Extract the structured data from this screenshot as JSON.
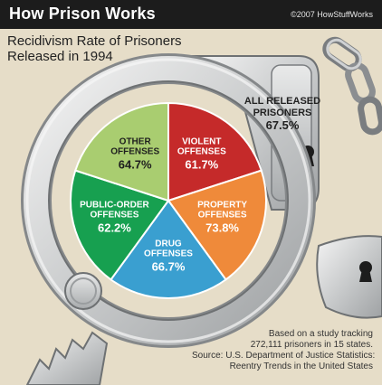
{
  "header": {
    "brand": "How Prison Works",
    "copyright": "©2007 HowStuffWorks"
  },
  "subtitle_lines": [
    "Recidivism Rate of Prisoners",
    "Released in 1994"
  ],
  "total_label": {
    "lines": [
      "ALL RELEASED",
      "PRISONERS"
    ],
    "value": "67.5%"
  },
  "note_lines": [
    "Based on a study tracking",
    "272,111 prisoners in 15 states.",
    "Source: U.S. Department of Justice Statistics:",
    "Reentry Trends in the United States"
  ],
  "chart_data": {
    "type": "pie",
    "title": "Recidivism Rate of Prisoners Released in 1994",
    "slices": [
      {
        "name": "VIOLENT OFFENSES",
        "label_lines": [
          "VIOLENT",
          "OFFENSES"
        ],
        "value": 61.7,
        "value_label": "61.7%",
        "color": "#c52a2a"
      },
      {
        "name": "PROPERTY OFFENSES",
        "label_lines": [
          "PROPERTY",
          "OFFENSES"
        ],
        "value": 73.8,
        "value_label": "73.8%",
        "color": "#ef8a3a"
      },
      {
        "name": "DRUG OFFENSES",
        "label_lines": [
          "DRUG",
          "OFFENSES"
        ],
        "value": 66.7,
        "value_label": "66.7%",
        "color": "#3a9fd0"
      },
      {
        "name": "PUBLIC-ORDER OFFENSES",
        "label_lines": [
          "PUBLIC-ORDER",
          "OFFENSES"
        ],
        "value": 62.2,
        "value_label": "62.2%",
        "color": "#17a050"
      },
      {
        "name": "OTHER OFFENSES",
        "label_lines": [
          "OTHER",
          "OFFENSES"
        ],
        "value": 64.7,
        "value_label": "64.7%",
        "color": "#a9cd70"
      }
    ],
    "all_released": {
      "name": "ALL RELEASED PRISONERS",
      "value": 67.5
    }
  }
}
